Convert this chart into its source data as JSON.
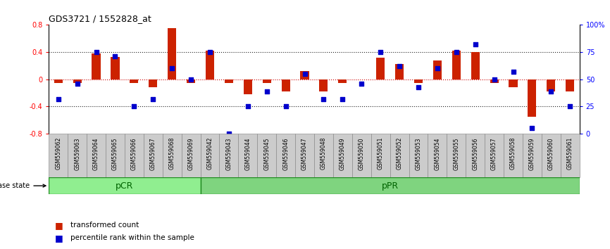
{
  "title": "GDS3721 / 1552828_at",
  "samples": [
    "GSM559062",
    "GSM559063",
    "GSM559064",
    "GSM559065",
    "GSM559066",
    "GSM559067",
    "GSM559068",
    "GSM559069",
    "GSM559042",
    "GSM559043",
    "GSM559044",
    "GSM559045",
    "GSM559046",
    "GSM559047",
    "GSM559048",
    "GSM559049",
    "GSM559050",
    "GSM559051",
    "GSM559052",
    "GSM559053",
    "GSM559054",
    "GSM559055",
    "GSM559056",
    "GSM559057",
    "GSM559058",
    "GSM559059",
    "GSM559060",
    "GSM559061"
  ],
  "transformed_count": [
    -0.05,
    -0.05,
    0.38,
    0.33,
    -0.05,
    -0.12,
    0.75,
    -0.05,
    0.42,
    -0.05,
    -0.22,
    -0.05,
    -0.18,
    0.12,
    -0.18,
    -0.05,
    0.0,
    0.32,
    0.22,
    -0.05,
    0.28,
    0.42,
    0.4,
    -0.05,
    -0.12,
    -0.55,
    -0.18,
    -0.18
  ],
  "percentile_rank": [
    32,
    46,
    75,
    71,
    25,
    32,
    60,
    50,
    75,
    0,
    25,
    39,
    25,
    55,
    32,
    32,
    46,
    75,
    62,
    43,
    60,
    75,
    82,
    50,
    57,
    5,
    39,
    25
  ],
  "group_labels": [
    "pCR",
    "pPR"
  ],
  "group_boundaries": [
    0,
    8,
    28
  ],
  "ylim_left": [
    -0.8,
    0.8
  ],
  "yticks_left": [
    -0.8,
    -0.4,
    0.0,
    0.4,
    0.8
  ],
  "ytick_left_labels": [
    "-0.8",
    "-0.4",
    "0",
    "0.4",
    "0.8"
  ],
  "yticks_right": [
    0,
    25,
    50,
    75,
    100
  ],
  "ytick_right_labels": [
    "0",
    "25",
    "50",
    "75",
    "100%"
  ],
  "bar_color": "#CC2200",
  "dot_color": "#0000CC",
  "zero_line_color": "#CC0000",
  "dotted_line_color": "#222222",
  "pcr_color": "#90EE90",
  "ppr_color": "#7FD47F",
  "group_border_color": "#228B22",
  "legend_items": [
    "transformed count",
    "percentile rank within the sample"
  ]
}
